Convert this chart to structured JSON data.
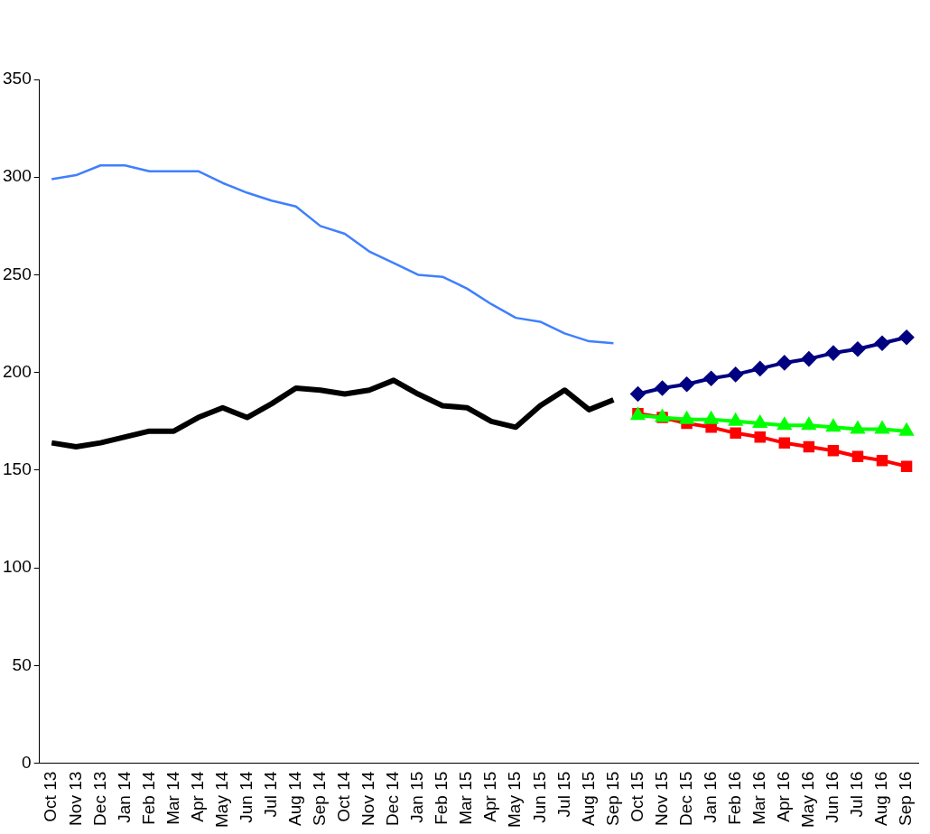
{
  "chart_data": {
    "type": "line",
    "categories": [
      "Oct 13",
      "Nov 13",
      "Dec 13",
      "Jan 14",
      "Feb 14",
      "Mar 14",
      "Apr 14",
      "May 14",
      "Jun 14",
      "Jul 14",
      "Aug 14",
      "Sep 14",
      "Oct 14",
      "Nov 14",
      "Dec 14",
      "Jan 15",
      "Feb 15",
      "Mar 15",
      "Apr 15",
      "May 15",
      "Jun 15",
      "Jul 15",
      "Aug 15",
      "Sep 15",
      "Oct 15",
      "Nov 15",
      "Dec 15",
      "Jan 16",
      "Feb 16",
      "Mar 16",
      "Apr 16",
      "May 16",
      "Jun 16",
      "Jul 16",
      "Aug 16",
      "Sep 16"
    ],
    "ylim": [
      0,
      350
    ],
    "yticks": [
      0,
      50,
      100,
      150,
      200,
      250,
      300,
      350
    ],
    "grid": false,
    "legend": false,
    "series": [
      {
        "color": "#000000",
        "marker": "none",
        "values": [
          164,
          162,
          164,
          167,
          170,
          170,
          177,
          182,
          177,
          184,
          192,
          191,
          189,
          191,
          196,
          189,
          183,
          182,
          175,
          172,
          183,
          191,
          181,
          186,
          null,
          null,
          null,
          null,
          null,
          null,
          null,
          null,
          null,
          null,
          null,
          null
        ]
      },
      {
        "color": "#ff0000",
        "marker": "square",
        "values": [
          null,
          null,
          null,
          null,
          null,
          null,
          null,
          null,
          null,
          null,
          null,
          null,
          null,
          null,
          null,
          null,
          null,
          null,
          null,
          null,
          null,
          null,
          null,
          null,
          179,
          177,
          174,
          172,
          169,
          167,
          164,
          162,
          160,
          157,
          155,
          152
        ]
      },
      {
        "color": "#000080",
        "marker": "diamond",
        "values": [
          null,
          null,
          null,
          null,
          null,
          null,
          null,
          null,
          null,
          null,
          null,
          null,
          null,
          null,
          null,
          null,
          null,
          null,
          null,
          null,
          null,
          null,
          null,
          null,
          189,
          192,
          194,
          197,
          199,
          202,
          205,
          207,
          210,
          212,
          215,
          218
        ]
      },
      {
        "color": "#00ff00",
        "marker": "triangle",
        "values": [
          null,
          null,
          null,
          null,
          null,
          null,
          null,
          null,
          null,
          null,
          null,
          null,
          null,
          null,
          null,
          null,
          null,
          null,
          null,
          null,
          null,
          null,
          null,
          null,
          178,
          177,
          176,
          176,
          175,
          174,
          173,
          173,
          172,
          171,
          171,
          170
        ]
      },
      {
        "color": "#3f7fff",
        "marker": "none",
        "values": [
          299,
          301,
          306,
          306,
          303,
          303,
          303,
          297,
          292,
          288,
          285,
          275,
          271,
          262,
          256,
          250,
          249,
          243,
          235,
          228,
          226,
          220,
          216,
          215,
          null,
          null,
          null,
          null,
          null,
          null,
          null,
          null,
          null,
          null,
          null,
          null
        ]
      }
    ]
  }
}
